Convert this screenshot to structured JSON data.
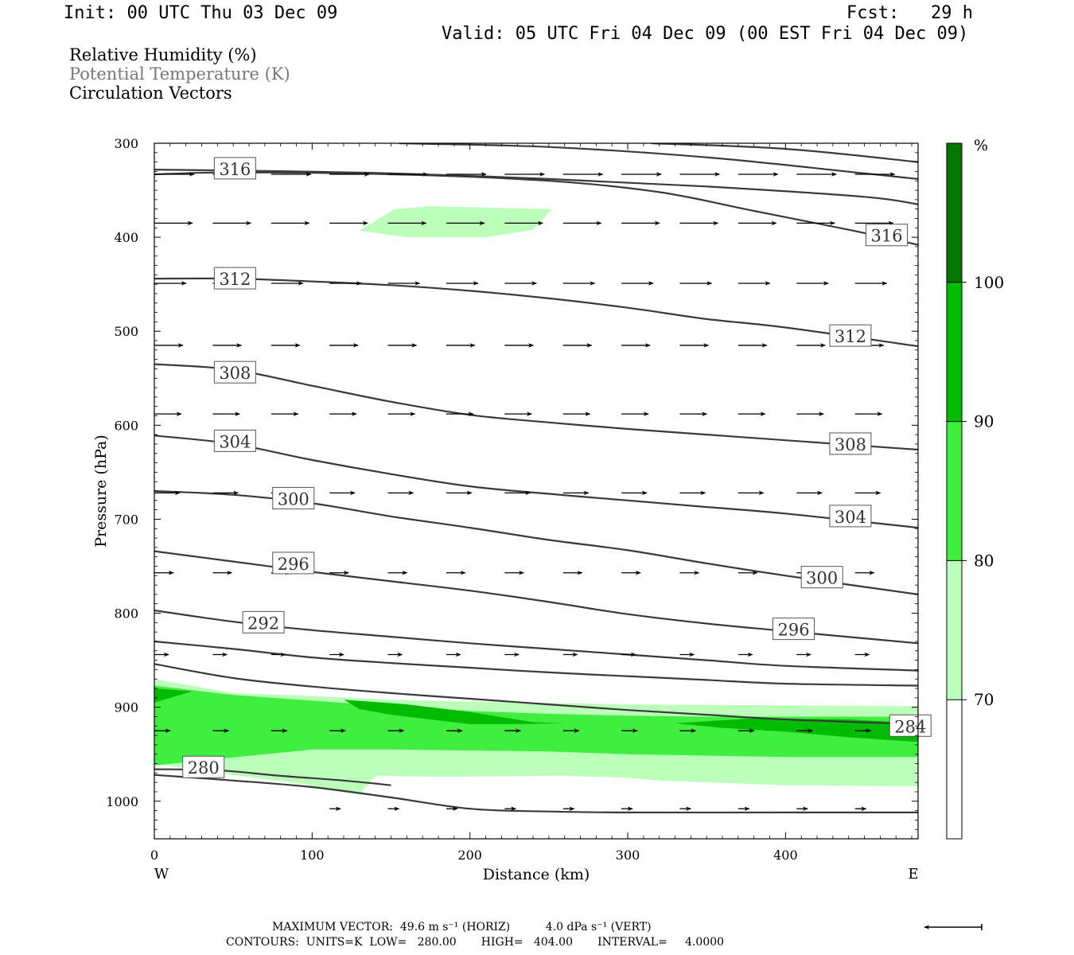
{
  "header": {
    "init": "Init: 00 UTC Thu 03 Dec 09",
    "fcst": "Fcst:   29 h",
    "valid": "Valid: 05 UTC Fri 04 Dec 09 (00 EST Fri 04 Dec 09)"
  },
  "legend": {
    "line1": "Relative Humidity (%)",
    "line2": "Potential Temperature (K)",
    "line3": "Circulation Vectors"
  },
  "footer": {
    "max_vector": "MAXIMUM VECTOR:  49.6 m s⁻¹ (HORIZ)          4.0 dPa s⁻¹ (VERT)",
    "contours": "CONTOURS:  UNITS=K  LOW=   280.00       HIGH=   404.00       INTERVAL=     4.0000"
  },
  "chart_data": {
    "type": "contour-cross-section",
    "xlabel": "Distance (km)",
    "ylabel": "Pressure (hPa)",
    "xlim": [
      0,
      484
    ],
    "ylim": [
      1040,
      300
    ],
    "x_ticks": [
      0,
      100,
      200,
      300,
      400
    ],
    "y_ticks": [
      300,
      400,
      500,
      600,
      700,
      800,
      900,
      1000
    ],
    "x_end_labels": {
      "left": "W",
      "right": "E"
    },
    "colorbar": {
      "unit": "%",
      "levels": [
        70,
        80,
        90,
        100
      ],
      "colors": [
        "#ffffff",
        "#bbffbb",
        "#40ee40",
        "#00bb00",
        "#007700"
      ]
    },
    "colors": {
      "contour": "#3a3a3a",
      "vector": "#000000",
      "grid_frame": "#000000"
    },
    "theta_contours": [
      {
        "points": [
          [
            0,
            328
          ],
          [
            50,
            329
          ],
          [
            150,
            332
          ],
          [
            250,
            338
          ],
          [
            350,
            346
          ],
          [
            450,
            357
          ],
          [
            484,
            365
          ]
        ]
      },
      {
        "points": [
          [
            155,
            300
          ],
          [
            250,
            304
          ],
          [
            350,
            315
          ],
          [
            450,
            332
          ],
          [
            484,
            338
          ]
        ]
      },
      {
        "points": [
          [
            315,
            300
          ],
          [
            400,
            306
          ],
          [
            484,
            320
          ]
        ]
      },
      {
        "points": [
          [
            0,
            333
          ],
          [
            50,
            331
          ],
          [
            150,
            333
          ],
          [
            250,
            340
          ],
          [
            320,
            352
          ],
          [
            380,
            372
          ],
          [
            440,
            392
          ],
          [
            484,
            408
          ]
        ]
      },
      {
        "points": [
          [
            0,
            444
          ],
          [
            50,
            444
          ],
          [
            100,
            447
          ],
          [
            150,
            451
          ],
          [
            200,
            457
          ],
          [
            250,
            465
          ],
          [
            300,
            475
          ],
          [
            350,
            487
          ],
          [
            400,
            496
          ],
          [
            484,
            516
          ]
        ]
      },
      {
        "points": [
          [
            0,
            535
          ],
          [
            50,
            541
          ],
          [
            100,
            558
          ],
          [
            150,
            575
          ],
          [
            200,
            589
          ],
          [
            250,
            597
          ],
          [
            300,
            604
          ],
          [
            350,
            610
          ],
          [
            400,
            616
          ],
          [
            484,
            626
          ]
        ]
      },
      {
        "points": [
          [
            0,
            611
          ],
          [
            50,
            620
          ],
          [
            100,
            637
          ],
          [
            150,
            652
          ],
          [
            200,
            665
          ],
          [
            250,
            673
          ],
          [
            300,
            680
          ],
          [
            350,
            687
          ],
          [
            400,
            694
          ],
          [
            484,
            709
          ]
        ]
      },
      {
        "points": [
          [
            0,
            670
          ],
          [
            50,
            674
          ],
          [
            100,
            683
          ],
          [
            150,
            697
          ],
          [
            200,
            709
          ],
          [
            250,
            722
          ],
          [
            300,
            733
          ],
          [
            350,
            747
          ],
          [
            400,
            760
          ],
          [
            484,
            780
          ]
        ]
      },
      {
        "points": [
          [
            0,
            734
          ],
          [
            50,
            745
          ],
          [
            100,
            756
          ],
          [
            150,
            766
          ],
          [
            200,
            776
          ],
          [
            250,
            788
          ],
          [
            300,
            801
          ],
          [
            350,
            811
          ],
          [
            400,
            819
          ],
          [
            484,
            832
          ]
        ]
      },
      {
        "points": [
          [
            0,
            797
          ],
          [
            50,
            809
          ],
          [
            100,
            818
          ],
          [
            150,
            825
          ],
          [
            200,
            832
          ],
          [
            250,
            838
          ],
          [
            300,
            844
          ],
          [
            350,
            850
          ],
          [
            400,
            856
          ],
          [
            484,
            861
          ]
        ]
      },
      {
        "points": [
          [
            0,
            830
          ],
          [
            50,
            838
          ],
          [
            100,
            847
          ],
          [
            150,
            853
          ],
          [
            200,
            858
          ],
          [
            250,
            863
          ],
          [
            300,
            867
          ],
          [
            350,
            871
          ],
          [
            400,
            875
          ],
          [
            484,
            877
          ]
        ]
      },
      {
        "points": [
          [
            0,
            854
          ],
          [
            50,
            869
          ],
          [
            100,
            878
          ],
          [
            150,
            885
          ],
          [
            200,
            891
          ],
          [
            250,
            897
          ],
          [
            300,
            903
          ],
          [
            350,
            908
          ],
          [
            400,
            913
          ],
          [
            484,
            918
          ]
        ]
      },
      {
        "points": [
          [
            0,
            966
          ],
          [
            40,
            967
          ],
          [
            80,
            973
          ],
          [
            120,
            978
          ],
          [
            150,
            983
          ]
        ]
      },
      {
        "points": [
          [
            0,
            972
          ],
          [
            50,
            978
          ],
          [
            100,
            985
          ],
          [
            150,
            996
          ],
          [
            200,
            1008
          ],
          [
            250,
            1011
          ],
          [
            300,
            1012
          ],
          [
            400,
            1012
          ],
          [
            484,
            1012
          ]
        ]
      }
    ],
    "theta_labels": [
      {
        "text": "316",
        "x": 38,
        "p": 327
      },
      {
        "text": "316",
        "x": 451,
        "p": 398
      },
      {
        "text": "312",
        "x": 38,
        "p": 444
      },
      {
        "text": "312",
        "x": 428,
        "p": 505
      },
      {
        "text": "308",
        "x": 38,
        "p": 544
      },
      {
        "text": "308",
        "x": 428,
        "p": 620
      },
      {
        "text": "304",
        "x": 38,
        "p": 617
      },
      {
        "text": "304",
        "x": 428,
        "p": 697
      },
      {
        "text": "300",
        "x": 75,
        "p": 678
      },
      {
        "text": "300",
        "x": 410,
        "p": 762
      },
      {
        "text": "296",
        "x": 75,
        "p": 747
      },
      {
        "text": "296",
        "x": 392,
        "p": 817
      },
      {
        "text": "292",
        "x": 56,
        "p": 810
      },
      {
        "text": "284",
        "x": 466,
        "p": 920
      },
      {
        "text": "280",
        "x": 18,
        "p": 964
      }
    ],
    "rh_regions": [
      {
        "level": 70,
        "points": [
          [
            130,
            393
          ],
          [
            152,
            370
          ],
          [
            175,
            367
          ],
          [
            252,
            370
          ],
          [
            240,
            392
          ],
          [
            210,
            400
          ],
          [
            160,
            400
          ]
        ]
      },
      {
        "level": 70,
        "points": [
          [
            0,
            870
          ],
          [
            50,
            885
          ],
          [
            100,
            888
          ],
          [
            150,
            892
          ],
          [
            200,
            894
          ],
          [
            300,
            897
          ],
          [
            400,
            898
          ],
          [
            484,
            899
          ],
          [
            484,
            984
          ],
          [
            400,
            983
          ],
          [
            320,
            978
          ],
          [
            300,
            975
          ],
          [
            260,
            973
          ],
          [
            180,
            974
          ],
          [
            140,
            973
          ],
          [
            130,
            993
          ],
          [
            110,
            988
          ],
          [
            95,
            982
          ],
          [
            50,
            972
          ],
          [
            0,
            960
          ]
        ]
      },
      {
        "level": 80,
        "points": [
          [
            0,
            877
          ],
          [
            50,
            887
          ],
          [
            100,
            893
          ],
          [
            150,
            899
          ],
          [
            200,
            904
          ],
          [
            250,
            907
          ],
          [
            300,
            909
          ],
          [
            350,
            910
          ],
          [
            400,
            910
          ],
          [
            484,
            910
          ],
          [
            484,
            953
          ],
          [
            400,
            953
          ],
          [
            300,
            950
          ],
          [
            250,
            947
          ],
          [
            200,
            946
          ],
          [
            150,
            945
          ],
          [
            100,
            945
          ],
          [
            40,
            955
          ],
          [
            0,
            962
          ]
        ]
      },
      {
        "level": 90,
        "points": [
          [
            120,
            892
          ],
          [
            160,
            897
          ],
          [
            200,
            905
          ],
          [
            240,
            916
          ],
          [
            260,
            917
          ],
          [
            230,
            918
          ],
          [
            200,
            918
          ],
          [
            150,
            908
          ],
          [
            130,
            902
          ]
        ]
      },
      {
        "level": 90,
        "points": [
          [
            330,
            917
          ],
          [
            380,
            912
          ],
          [
            440,
            913
          ],
          [
            484,
            917
          ],
          [
            484,
            937
          ],
          [
            440,
            932
          ],
          [
            400,
            926
          ],
          [
            360,
            922
          ]
        ]
      },
      {
        "level": 90,
        "points": [
          [
            0,
            880
          ],
          [
            24,
            883
          ],
          [
            0,
            895
          ]
        ]
      }
    ],
    "vectors": [
      {
        "p": 333,
        "xs": [
          0,
          37,
          74,
          111,
          148,
          185,
          222,
          259,
          296,
          333,
          370,
          407,
          444
        ],
        "len": 50
      },
      {
        "p": 385,
        "xs": [
          0,
          37,
          74,
          111,
          148,
          185,
          222,
          259,
          296,
          333,
          370,
          407,
          444
        ],
        "len": 48
      },
      {
        "p": 449,
        "xs": [
          0,
          37,
          74,
          111,
          148,
          185,
          222,
          259,
          296,
          333,
          370,
          407,
          444
        ],
        "len": 40
      },
      {
        "p": 515,
        "xs": [
          0,
          37,
          74,
          111,
          148,
          185,
          222,
          259,
          296,
          333,
          370,
          407,
          444
        ],
        "len": 36
      },
      {
        "p": 588,
        "xs": [
          0,
          37,
          74,
          111,
          148,
          185,
          222,
          259,
          296,
          333,
          370,
          407,
          444
        ],
        "len": 34
      },
      {
        "p": 672,
        "xs": [
          0,
          37,
          74,
          111,
          148,
          185,
          222,
          259,
          296,
          333,
          370,
          407,
          444
        ],
        "len": 32
      },
      {
        "p": 757,
        "xs": [
          0,
          37,
          74,
          111,
          148,
          185,
          222,
          259,
          296,
          333,
          370,
          407,
          444
        ],
        "len": 24
      },
      {
        "p": 844,
        "xs": [
          0,
          37,
          74,
          111,
          148,
          185,
          222,
          259,
          296,
          333,
          370,
          407,
          444
        ],
        "len": 18
      },
      {
        "p": 925,
        "xs": [
          0,
          37,
          74,
          111,
          148,
          185,
          222,
          259,
          296,
          333,
          370,
          407,
          444
        ],
        "len": 20
      },
      {
        "p": 1008,
        "xs": [
          111,
          148,
          185,
          222,
          259,
          296,
          333,
          370,
          407,
          444
        ],
        "len": 14
      }
    ]
  }
}
